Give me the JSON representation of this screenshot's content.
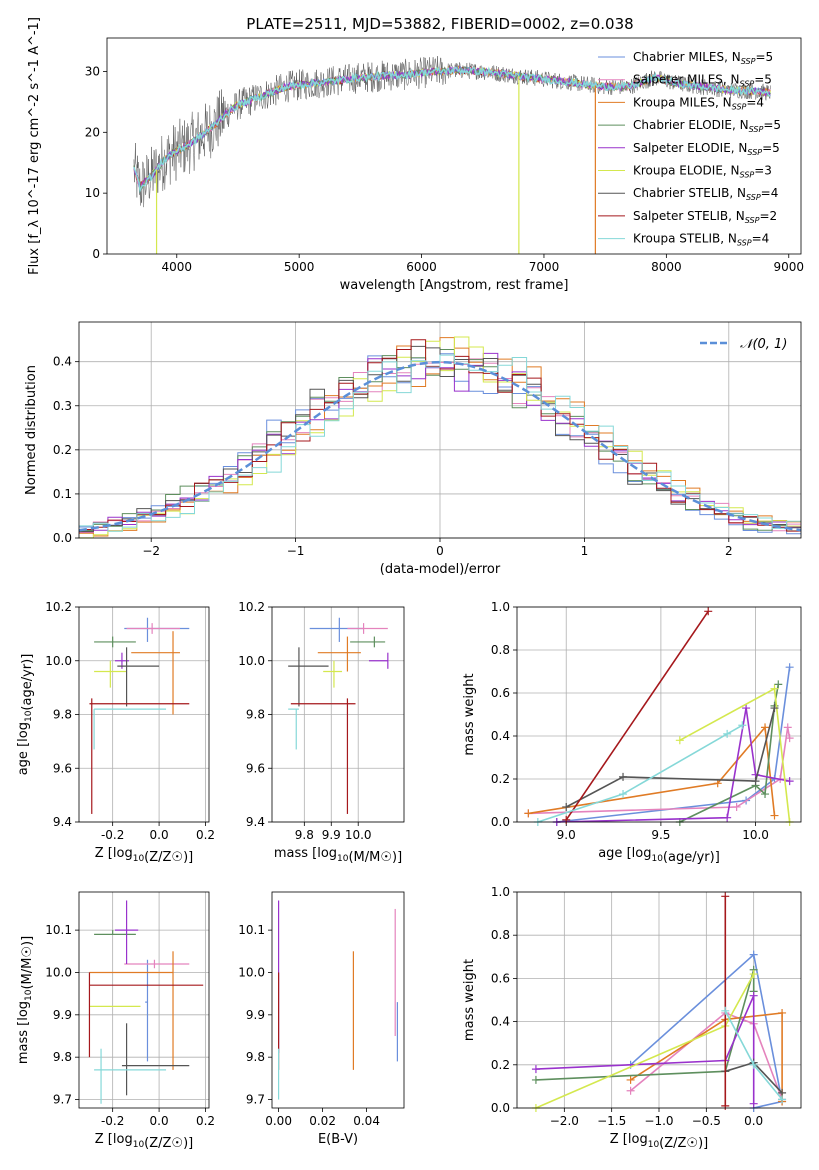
{
  "figure_title": "PLATE=2511, MJD=53882, FIBERID=0002, z=0.038",
  "series_colors": [
    "#6a8fdc",
    "#e483bd",
    "#e07b25",
    "#5e8f5e",
    "#9932cc",
    "#d4e84e",
    "#555555",
    "#a5181c",
    "#85d8d8"
  ],
  "chart_data": [
    {
      "id": "spectrum",
      "type": "line",
      "title": "PLATE=2511, MJD=53882, FIBERID=0002, z=0.038",
      "xlabel": "wavelength [Angstrom, rest frame]",
      "ylabel": "Flux [f_λ 10^-17 erg cm^-2 s^-1 A^-1]",
      "xlim": [
        3430,
        9100
      ],
      "ylim": [
        0,
        35.5
      ],
      "xticks": [
        "4000",
        "5000",
        "6000",
        "7000",
        "8000",
        "9000"
      ],
      "yticks": [
        "0",
        "10",
        "20",
        "30"
      ],
      "grid": false,
      "legend_position": "top-right",
      "legend": [
        {
          "main": "Chabrier MILES, N",
          "sub": "SSP",
          "end": "=5"
        },
        {
          "main": "Salpeter MILES, N",
          "sub": "SSP",
          "end": "=5"
        },
        {
          "main": "Kroupa MILES, N",
          "sub": "SSP",
          "end": "=4"
        },
        {
          "main": "Chabrier ELODIE, N",
          "sub": "SSP",
          "end": "=5"
        },
        {
          "main": "Salpeter ELODIE, N",
          "sub": "SSP",
          "end": "=5"
        },
        {
          "main": "Kroupa ELODIE, N",
          "sub": "SSP",
          "end": "=3"
        },
        {
          "main": "Chabrier STELIB, N",
          "sub": "SSP",
          "end": "=4"
        },
        {
          "main": "Salpeter STELIB, N",
          "sub": "SSP",
          "end": "=2"
        },
        {
          "main": "Kroupa STELIB, N",
          "sub": "SSP",
          "end": "=4"
        }
      ],
      "model_continuum": [
        [
          3650,
          14
        ],
        [
          3700,
          11
        ],
        [
          3800,
          13
        ],
        [
          3900,
          15.5
        ],
        [
          4000,
          17
        ],
        [
          4100,
          18
        ],
        [
          4200,
          19.5
        ],
        [
          4300,
          21
        ],
        [
          4400,
          23
        ],
        [
          4500,
          24.5
        ],
        [
          4700,
          26
        ],
        [
          4900,
          27.5
        ],
        [
          5100,
          28
        ],
        [
          5300,
          28.5
        ],
        [
          5500,
          29
        ],
        [
          5700,
          29.3
        ],
        [
          5900,
          29.5
        ],
        [
          6100,
          30
        ],
        [
          6300,
          30.2
        ],
        [
          6500,
          30
        ],
        [
          6700,
          29.5
        ],
        [
          6900,
          29
        ],
        [
          7100,
          28.5
        ],
        [
          7300,
          28
        ],
        [
          7500,
          27.5
        ],
        [
          7700,
          27.5
        ],
        [
          7900,
          29
        ],
        [
          8100,
          28
        ],
        [
          8300,
          27.5
        ],
        [
          8500,
          27
        ],
        [
          8700,
          26.8
        ],
        [
          8850,
          26.5
        ]
      ],
      "model_drops": [
        {
          "color_index": 2,
          "x": 7420,
          "y_to": 0
        },
        {
          "color_index": 5,
          "x": 6795,
          "y_to": 0
        },
        {
          "color_index": 5,
          "x": 3835,
          "y_to": 0
        }
      ]
    },
    {
      "id": "residuals",
      "type": "histogram",
      "xlabel": "(data-model)/error",
      "ylabel": "Normed distribution",
      "xlim": [
        -2.5,
        2.5
      ],
      "ylim": [
        0,
        0.49
      ],
      "xticks": [
        "−2",
        "−1",
        "0",
        "1",
        "2"
      ],
      "yticks": [
        "0.0",
        "0.1",
        "0.2",
        "0.3",
        "0.4"
      ],
      "grid": true,
      "legend_position": "top-right",
      "legend_label": "𝒩(0, 1)",
      "reference_curve": "normal(0,1)",
      "bin_width": 0.1
    },
    {
      "id": "z_age",
      "type": "errorbar",
      "xlabel": "Z [log10(Z/Z☉)]",
      "ylabel": "age  [log10(age/yr)]",
      "xlim": [
        -0.345,
        0.215
      ],
      "ylim": [
        9.4,
        10.2
      ],
      "xticks": [
        -0.2,
        0.0,
        0.2
      ],
      "yticks": [
        9.4,
        9.6,
        9.8,
        10.0,
        10.2
      ],
      "grid": true,
      "points": [
        {
          "c": 0,
          "x": -0.05,
          "y": 10.12,
          "xl": -0.15,
          "xh": 0.13,
          "yl": 10.07,
          "yh": 10.16
        },
        {
          "c": 1,
          "x": -0.03,
          "y": 10.12,
          "xl": -0.14,
          "xh": 0.09,
          "yl": 10.1,
          "yh": 10.14
        },
        {
          "c": 2,
          "x": 0.06,
          "y": 10.03,
          "xl": -0.12,
          "xh": 0.09,
          "yl": 9.8,
          "yh": 10.11
        },
        {
          "c": 3,
          "x": -0.2,
          "y": 10.07,
          "xl": -0.28,
          "xh": -0.1,
          "yl": 10.05,
          "yh": 10.09
        },
        {
          "c": 4,
          "x": -0.16,
          "y": 10.0,
          "xl": -0.19,
          "xh": -0.13,
          "yl": 9.97,
          "yh": 10.03
        },
        {
          "c": 5,
          "x": -0.21,
          "y": 9.96,
          "xl": -0.28,
          "xh": -0.14,
          "yl": 9.9,
          "yh": 10.0
        },
        {
          "c": 6,
          "x": -0.14,
          "y": 9.98,
          "xl": -0.18,
          "xh": 0.0,
          "yl": 9.83,
          "yh": 10.05
        },
        {
          "c": 7,
          "x": -0.29,
          "y": 9.84,
          "xl": -0.3,
          "xh": 0.13,
          "yl": 9.43,
          "yh": 9.86
        },
        {
          "c": 8,
          "x": -0.28,
          "y": 9.82,
          "xl": -0.28,
          "xh": 0.03,
          "yl": 9.67,
          "yh": 9.82
        }
      ]
    },
    {
      "id": "mass_age",
      "type": "errorbar",
      "xlabel": "mass [log10(M/M☉)]",
      "xlim": [
        9.68,
        10.17
      ],
      "ylim": [
        9.4,
        10.2
      ],
      "xticks": [
        9.8,
        9.9,
        10.0
      ],
      "yticks": [
        9.4,
        9.6,
        9.8,
        10.0,
        10.2
      ],
      "grid": true,
      "points": [
        {
          "c": 0,
          "x": 9.93,
          "y": 10.12,
          "xl": 9.82,
          "xh": 10.02,
          "yl": 10.07,
          "yh": 10.16
        },
        {
          "c": 1,
          "x": 10.02,
          "y": 10.12,
          "xl": 9.96,
          "xh": 10.11,
          "yl": 10.1,
          "yh": 10.14
        },
        {
          "c": 2,
          "x": 9.96,
          "y": 10.03,
          "xl": 9.85,
          "xh": 10.01,
          "yl": 9.96,
          "yh": 10.09
        },
        {
          "c": 3,
          "x": 10.06,
          "y": 10.07,
          "xl": 9.97,
          "xh": 10.1,
          "yl": 10.05,
          "yh": 10.09
        },
        {
          "c": 4,
          "x": 10.11,
          "y": 10.0,
          "xl": 10.04,
          "xh": 10.11,
          "yl": 9.97,
          "yh": 10.03
        },
        {
          "c": 5,
          "x": 9.91,
          "y": 9.96,
          "xl": 9.87,
          "xh": 9.94,
          "yl": 9.9,
          "yh": 10.0
        },
        {
          "c": 6,
          "x": 9.78,
          "y": 9.98,
          "xl": 9.74,
          "xh": 9.89,
          "yl": 9.83,
          "yh": 10.05
        },
        {
          "c": 7,
          "x": 9.96,
          "y": 9.84,
          "xl": 9.75,
          "xh": 9.99,
          "yl": 9.43,
          "yh": 9.86
        },
        {
          "c": 8,
          "x": 9.77,
          "y": 9.82,
          "xl": 9.74,
          "xh": 9.78,
          "yl": 9.67,
          "yh": 9.82
        }
      ]
    },
    {
      "id": "age_weight",
      "type": "line",
      "xlabel": "age  [log10(age/yr)]",
      "ylabel": "mass weight",
      "xlim": [
        8.74,
        10.24
      ],
      "ylim": [
        0,
        1.0
      ],
      "xticks": [
        9.0,
        9.5,
        10.0
      ],
      "yticks": [
        0.0,
        0.2,
        0.4,
        0.6,
        0.8,
        1.0
      ],
      "grid": true,
      "series": [
        {
          "c": 0,
          "points": [
            [
              8.95,
              0.0
            ],
            [
              9.95,
              0.1
            ],
            [
              10.1,
              0.2
            ],
            [
              10.18,
              0.72
            ]
          ]
        },
        {
          "c": 1,
          "points": [
            [
              8.8,
              0.04
            ],
            [
              9.9,
              0.07
            ],
            [
              10.13,
              0.2
            ],
            [
              10.17,
              0.44
            ],
            [
              10.18,
              0.39
            ]
          ]
        },
        {
          "c": 2,
          "points": [
            [
              8.8,
              0.04
            ],
            [
              9.8,
              0.18
            ],
            [
              10.05,
              0.44
            ],
            [
              10.1,
              0.03
            ]
          ]
        },
        {
          "c": 3,
          "points": [
            [
              9.6,
              0.0
            ],
            [
              10.0,
              0.17
            ],
            [
              10.05,
              0.13
            ],
            [
              10.1,
              0.54
            ],
            [
              10.12,
              0.64
            ]
          ]
        },
        {
          "c": 4,
          "points": [
            [
              8.95,
              0.0
            ],
            [
              9.85,
              0.02
            ],
            [
              9.95,
              0.53
            ],
            [
              10.0,
              0.22
            ],
            [
              10.18,
              0.19
            ]
          ]
        },
        {
          "c": 5,
          "points": [
            [
              9.6,
              0.38
            ],
            [
              10.1,
              0.62
            ],
            [
              10.18,
              0.0
            ]
          ]
        },
        {
          "c": 6,
          "points": [
            [
              9.0,
              0.07
            ],
            [
              9.3,
              0.21
            ],
            [
              10.0,
              0.19
            ],
            [
              10.1,
              0.53
            ]
          ]
        },
        {
          "c": 7,
          "points": [
            [
              9.0,
              0.01
            ],
            [
              9.75,
              0.98
            ]
          ]
        },
        {
          "c": 8,
          "points": [
            [
              8.85,
              0.0
            ],
            [
              9.3,
              0.13
            ],
            [
              9.85,
              0.41
            ],
            [
              9.93,
              0.45
            ]
          ]
        }
      ]
    },
    {
      "id": "z_mass",
      "type": "errorbar",
      "xlabel": "Z [log10(Z/Z☉)]",
      "ylabel": "mass [log10(M/M☉)]",
      "xlim": [
        -0.345,
        0.215
      ],
      "ylim": [
        9.68,
        10.19
      ],
      "xticks": [
        -0.2,
        0.0,
        0.2
      ],
      "yticks": [
        9.7,
        9.8,
        9.9,
        10.0,
        10.1
      ],
      "grid": true,
      "points": [
        {
          "c": 0,
          "x": -0.05,
          "y": 9.93,
          "xl": -0.06,
          "xh": -0.05,
          "yl": 9.79,
          "yh": 10.03
        },
        {
          "c": 1,
          "x": -0.02,
          "y": 10.02,
          "xl": -0.15,
          "xh": 0.13,
          "yl": 10.01,
          "yh": 10.03
        },
        {
          "c": 2,
          "x": 0.06,
          "y": 10.0,
          "xl": -0.3,
          "xh": 0.06,
          "yl": 9.77,
          "yh": 10.05
        },
        {
          "c": 3,
          "x": -0.2,
          "y": 10.09,
          "xl": -0.28,
          "xh": -0.1,
          "yl": 10.09,
          "yh": 10.1
        },
        {
          "c": 4,
          "x": -0.14,
          "y": 10.1,
          "xl": -0.19,
          "xh": -0.09,
          "yl": 10.02,
          "yh": 10.17
        },
        {
          "c": 5,
          "x": -0.2,
          "y": 9.92,
          "xl": -0.3,
          "xh": -0.08,
          "yl": 9.92,
          "yh": 9.92
        },
        {
          "c": 6,
          "x": -0.14,
          "y": 9.78,
          "xl": -0.16,
          "xh": 0.13,
          "yl": 9.71,
          "yh": 9.88
        },
        {
          "c": 7,
          "x": -0.3,
          "y": 9.97,
          "xl": -0.3,
          "xh": 0.19,
          "yl": 9.8,
          "yh": 10.0
        },
        {
          "c": 8,
          "x": -0.25,
          "y": 9.77,
          "xl": -0.28,
          "xh": 0.03,
          "yl": 9.69,
          "yh": 9.82
        }
      ]
    },
    {
      "id": "ebv_mass",
      "type": "errorbar",
      "xlabel": "E(B-V)",
      "xlim": [
        -0.003,
        0.057
      ],
      "ylim": [
        9.68,
        10.19
      ],
      "xticks": [
        "0.00",
        "0.02",
        "0.04"
      ],
      "yticks": [
        9.7,
        9.8,
        9.9,
        10.0,
        10.1
      ],
      "grid": false,
      "points": [
        {
          "c": 4,
          "x": 0.0,
          "yl": 9.81,
          "yh": 10.17
        },
        {
          "c": 7,
          "x": 0.0,
          "yl": 9.77,
          "yh": 10.0
        },
        {
          "c": 8,
          "x": 0.0,
          "yl": 9.7,
          "yh": 9.82
        },
        {
          "c": 2,
          "x": 0.034,
          "yl": 9.77,
          "yh": 10.05
        },
        {
          "c": 1,
          "x": 0.053,
          "yl": 9.85,
          "yh": 10.15
        },
        {
          "c": 0,
          "x": 0.054,
          "yl": 9.79,
          "yh": 9.93
        }
      ]
    },
    {
      "id": "z_weight",
      "type": "line",
      "xlabel": "Z [log10(Z/Z☉)]",
      "ylabel": "mass weight",
      "xlim": [
        -2.5,
        0.5
      ],
      "ylim": [
        0,
        1.0
      ],
      "xticks": [
        "−2.0",
        "−1.5",
        "−1.0",
        "−0.5",
        "0.0"
      ],
      "yticks": [
        0.0,
        0.2,
        0.4,
        0.6,
        0.8,
        1.0
      ],
      "grid": true,
      "series": [
        {
          "c": 0,
          "points": [
            [
              -1.3,
              0.2
            ],
            [
              0.0,
              0.71
            ],
            [
              0.3,
              0.03
            ],
            [
              0.0,
              0.0
            ]
          ]
        },
        {
          "c": 1,
          "points": [
            [
              -1.3,
              0.08
            ],
            [
              -0.3,
              0.44
            ],
            [
              0.0,
              0.39
            ],
            [
              0.3,
              0.04
            ]
          ]
        },
        {
          "c": 2,
          "points": [
            [
              -1.3,
              0.13
            ],
            [
              -0.3,
              0.41
            ],
            [
              0.3,
              0.44
            ],
            [
              0.3,
              0.03
            ]
          ]
        },
        {
          "c": 3,
          "points": [
            [
              -2.3,
              0.13
            ],
            [
              -0.3,
              0.17
            ],
            [
              0.0,
              0.64
            ],
            [
              0.0,
              0.54
            ]
          ]
        },
        {
          "c": 4,
          "points": [
            [
              -2.3,
              0.18
            ],
            [
              -0.3,
              0.22
            ],
            [
              0.0,
              0.52
            ],
            [
              0.0,
              0.02
            ]
          ]
        },
        {
          "c": 5,
          "points": [
            [
              -2.3,
              0.0
            ],
            [
              -0.3,
              0.38
            ],
            [
              0.0,
              0.62
            ]
          ]
        },
        {
          "c": 6,
          "points": [
            [
              -0.3,
              0.17
            ],
            [
              0.0,
              0.21
            ],
            [
              0.3,
              0.07
            ]
          ]
        },
        {
          "c": 7,
          "points": [
            [
              -0.3,
              0.98
            ],
            [
              -0.3,
              0.01
            ]
          ]
        },
        {
          "c": 8,
          "points": [
            [
              -0.3,
              0.45
            ],
            [
              0.0,
              0.2
            ],
            [
              0.3,
              0.04
            ]
          ]
        }
      ]
    }
  ]
}
